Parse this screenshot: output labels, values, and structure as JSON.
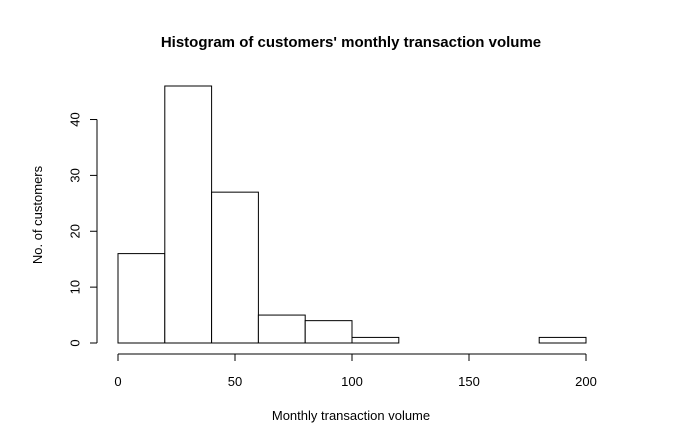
{
  "chart_data": {
    "type": "bar",
    "title": "Histogram of customers' monthly transaction volume",
    "xlabel": "Monthly transaction volume",
    "ylabel": "No. of customers",
    "bin_edges": [
      0,
      20,
      40,
      60,
      80,
      100,
      120,
      140,
      160,
      180,
      200
    ],
    "values": [
      16,
      46,
      27,
      5,
      4,
      1,
      0,
      0,
      0,
      1
    ],
    "xlim": [
      0,
      200
    ],
    "ylim": [
      0,
      46
    ],
    "x_ticks": [
      0,
      50,
      100,
      150,
      200
    ],
    "y_ticks": [
      0,
      10,
      20,
      30,
      40
    ],
    "grid": false,
    "colors": {
      "bar_fill": "#ffffff",
      "bar_stroke": "#000000"
    }
  }
}
